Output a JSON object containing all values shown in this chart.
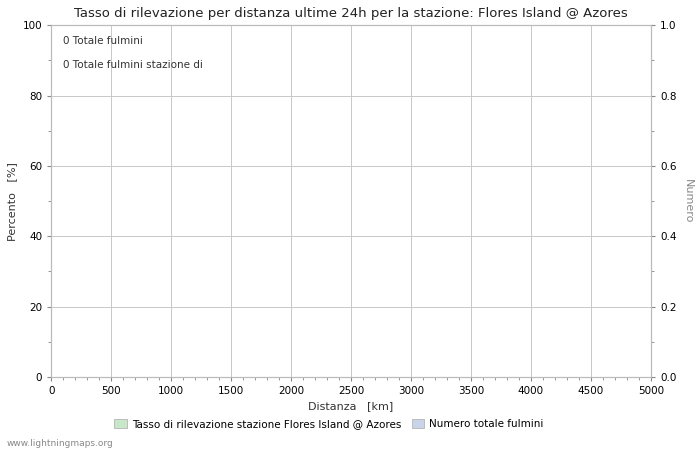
{
  "title": "Tasso di rilevazione per distanza ultime 24h per la stazione: Flores Island @ Azores",
  "xlabel": "Distanza   [km]",
  "ylabel_left": "Percento   [%]",
  "ylabel_right": "Numero",
  "annotation_line1": "0 Totale fulmini",
  "annotation_line2": "0 Totale fulmini stazione di",
  "xlim": [
    0,
    5000
  ],
  "ylim_left": [
    0,
    100
  ],
  "ylim_right": [
    0,
    1.0
  ],
  "xticks": [
    0,
    500,
    1000,
    1500,
    2000,
    2500,
    3000,
    3500,
    4000,
    4500,
    5000
  ],
  "yticks_left": [
    0,
    20,
    40,
    60,
    80,
    100
  ],
  "yticks_right": [
    0.0,
    0.2,
    0.4,
    0.6,
    0.8,
    1.0
  ],
  "legend_label1": "Tasso di rilevazione stazione Flores Island @ Azores",
  "legend_label2": "Numero totale fulmini",
  "legend_color1": "#c8e6c8",
  "legend_color2": "#c8d4e8",
  "grid_color": "#c8c8c8",
  "background_color": "#ffffff",
  "watermark": "www.lightningmaps.org",
  "title_fontsize": 9.5,
  "label_fontsize": 8,
  "tick_fontsize": 7.5,
  "annotation_fontsize": 7.5,
  "watermark_fontsize": 6.5
}
